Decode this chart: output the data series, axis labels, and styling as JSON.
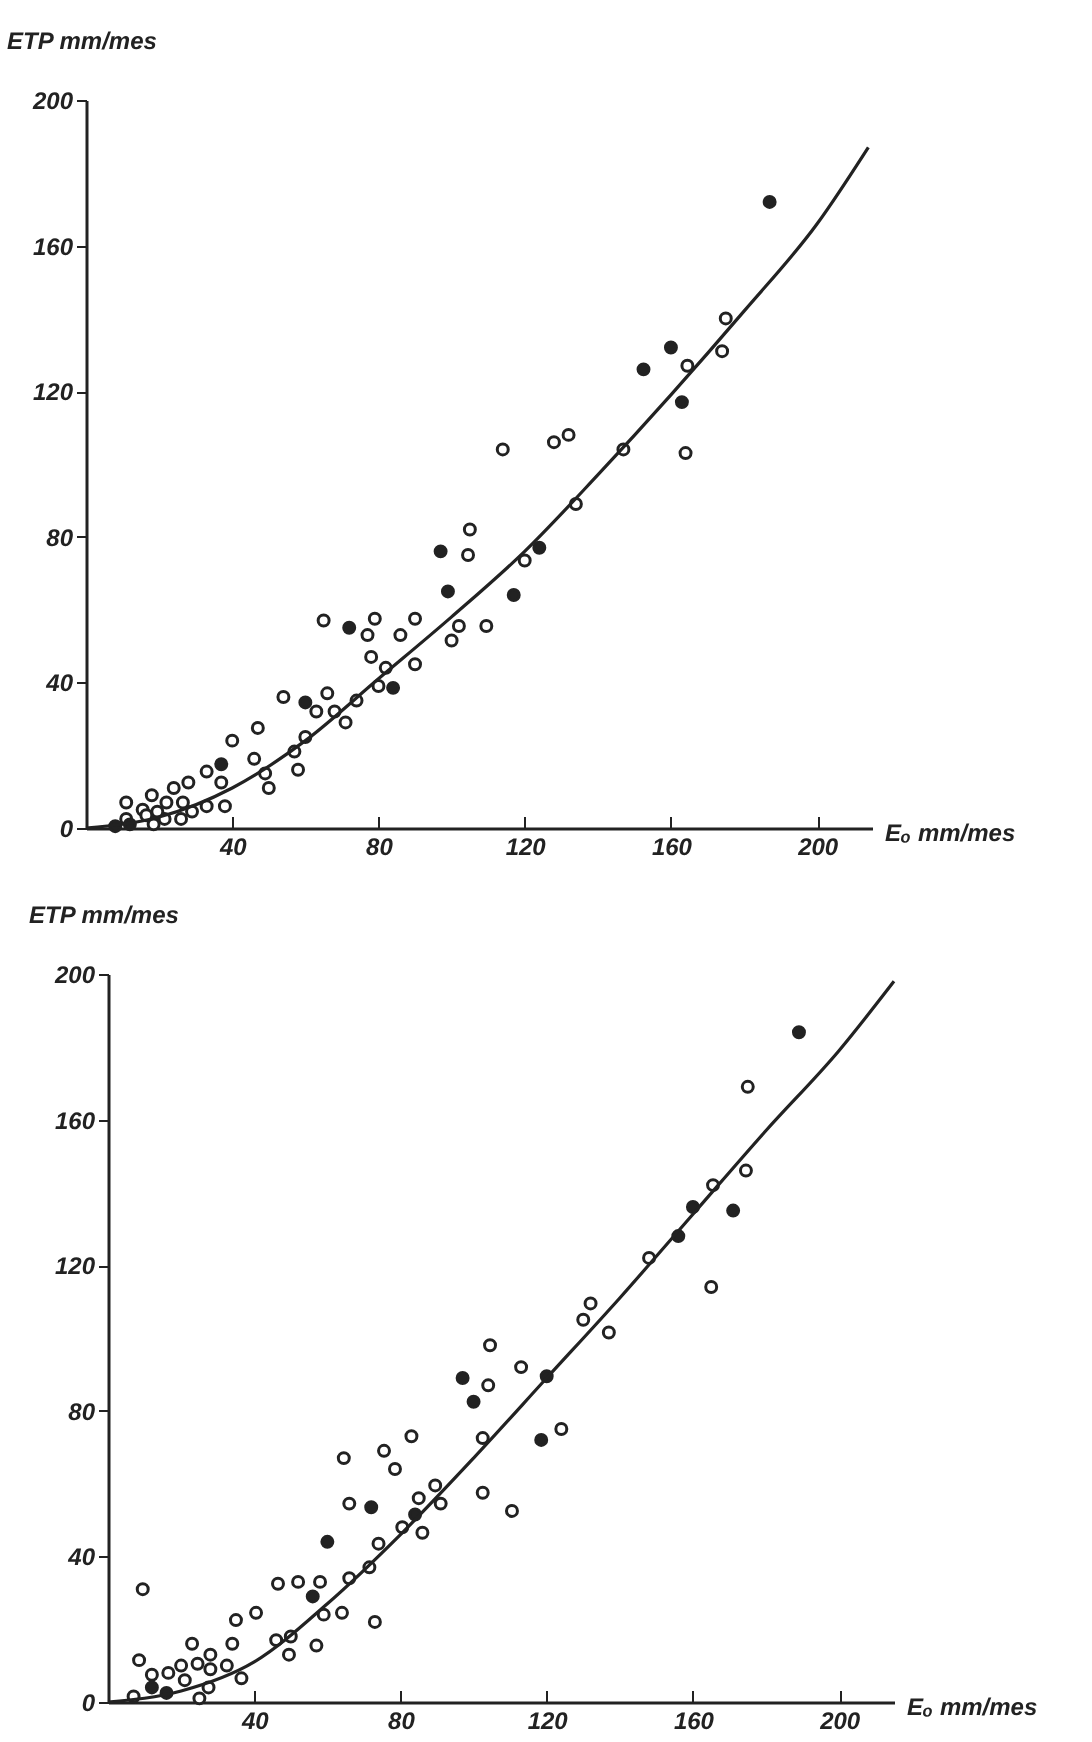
{
  "chart_data": [
    {
      "type": "scatter",
      "xlabel": "Eₒ mm/mes",
      "ylabel": "ETP mm/mes",
      "xlim": [
        0,
        215
      ],
      "ylim": [
        0,
        200
      ],
      "xticks": [
        40,
        80,
        120,
        160,
        200
      ],
      "yticks": [
        0,
        40,
        80,
        120,
        160,
        200
      ],
      "grid": false,
      "marker": "circle",
      "series": [
        {
          "color": "#ffffff",
          "x": [
            105,
            104.5,
            65,
            79,
            77,
            90,
            86,
            78,
            82,
            90,
            102,
            100,
            109.5,
            80,
            66,
            63,
            68,
            74,
            71,
            54,
            60,
            57,
            58,
            47,
            46,
            49,
            50,
            40,
            33,
            37,
            38,
            33,
            28,
            24,
            18,
            11,
            15.5,
            22,
            26.5,
            29,
            26,
            21.5,
            19.5,
            16.5,
            11,
            18.5,
            114,
            128,
            132,
            147,
            164,
            134,
            164.5,
            174,
            175,
            120
          ],
          "values": [
            82,
            75,
            57,
            57.5,
            53,
            57.5,
            53,
            47,
            44,
            45,
            55.5,
            51.5,
            55.5,
            39,
            37,
            32,
            32,
            35,
            29,
            36,
            25,
            21,
            16,
            27.5,
            19,
            15,
            11,
            24,
            15.5,
            12.5,
            6,
            6,
            12.5,
            11,
            9,
            7,
            5,
            7,
            7,
            4.5,
            2.5,
            2.5,
            4.5,
            3.5,
            2.5,
            1,
            104,
            106,
            108,
            104,
            103,
            89,
            127,
            131,
            140,
            73.5
          ]
        },
        {
          "color": "#222222",
          "x": [
            97,
            99,
            72,
            84,
            60,
            37,
            12,
            8,
            187,
            152.5,
            160,
            163,
            124,
            117
          ],
          "values": [
            76,
            65,
            55,
            38.5,
            34.5,
            17.5,
            1,
            0.5,
            172,
            126,
            132,
            117,
            77,
            64
          ]
        },
        {
          "type": "line",
          "marker": "none",
          "color": "#222222",
          "x": [
            0,
            20,
            40,
            60,
            80,
            100,
            120,
            140,
            160,
            180,
            200,
            214
          ],
          "values": [
            0,
            3,
            11,
            24,
            41,
            58,
            76,
            97,
            119,
            142,
            166,
            187
          ]
        }
      ]
    },
    {
      "type": "scatter",
      "xlabel": "Eₒ mm/mes",
      "ylabel": "ETP mm/mes",
      "xlim": [
        0,
        215
      ],
      "ylim": [
        0,
        200
      ],
      "xticks": [
        40,
        80,
        120,
        160,
        200
      ],
      "yticks": [
        0,
        40,
        80,
        120,
        160,
        200
      ],
      "grid": false,
      "marker": "circle",
      "series": [
        {
          "color": "#ffffff",
          "x": [
            9.5,
            8.5,
            12,
            16.5,
            20,
            23,
            24.5,
            28,
            28,
            21,
            27.5,
            25,
            7,
            32.5,
            34,
            35,
            40.5,
            36.5,
            46.5,
            52,
            46,
            50,
            49.5,
            57,
            58,
            59,
            64,
            66,
            64.5,
            66,
            71.5,
            73,
            75.5,
            78.5,
            74,
            80.5,
            83,
            85,
            86,
            89.5,
            91,
            104,
            102.5,
            102.5,
            175,
            174.5,
            165.5,
            165,
            148,
            132,
            130,
            137,
            104.5,
            113,
            124,
            110.5
          ],
          "values": [
            31,
            11.5,
            7.5,
            8,
            10,
            16,
            10.5,
            13,
            9,
            6,
            4,
            1,
            1.5,
            10,
            16,
            22.5,
            24.5,
            6.5,
            32.5,
            33,
            17,
            18,
            13,
            15.5,
            33,
            24,
            24.5,
            34,
            67,
            54.5,
            37,
            22,
            69,
            64,
            43.5,
            48,
            73,
            56,
            46.5,
            59.5,
            54.5,
            87,
            72.5,
            57.5,
            169,
            146,
            142,
            114,
            122,
            109.5,
            105,
            101.5,
            98,
            92,
            75,
            52.5
          ]
        },
        {
          "color": "#222222",
          "x": [
            97,
            100,
            72,
            60,
            56,
            84,
            16,
            12,
            189,
            160,
            171,
            156,
            120,
            118.5
          ],
          "values": [
            89,
            82.5,
            53.5,
            44,
            29,
            51.5,
            2.5,
            4,
            184,
            136,
            135,
            128,
            89.5,
            72
          ]
        },
        {
          "type": "line",
          "marker": "none",
          "color": "#222222",
          "x": [
            0,
            20,
            40,
            60,
            80,
            100,
            120,
            140,
            160,
            180,
            200,
            215
          ],
          "values": [
            0,
            3,
            11,
            27,
            46,
            67,
            89,
            111,
            134,
            157,
            179,
            198
          ]
        }
      ]
    }
  ]
}
